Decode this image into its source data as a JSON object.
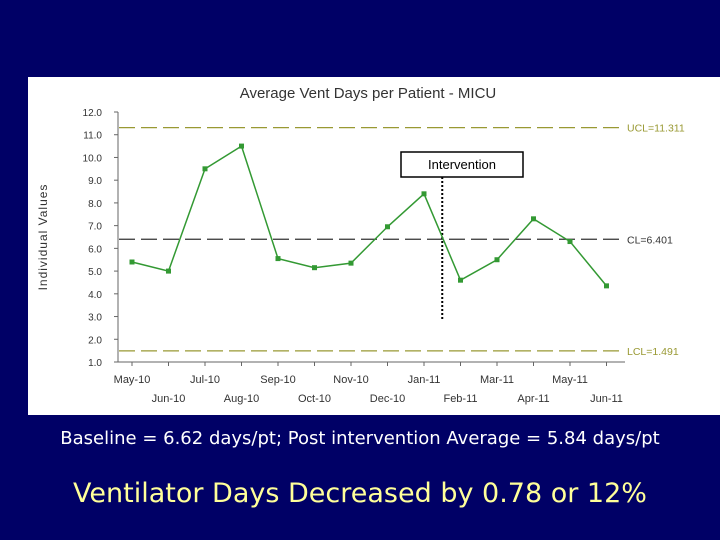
{
  "colors": {
    "background": "#000066",
    "panel": "#ffffff",
    "series": "#339933",
    "control_limit": "#999933",
    "center_line": "#333333",
    "caption_main": "#ffffff",
    "caption_headline": "#ffff99"
  },
  "chart_data": {
    "type": "line",
    "title": "Average Vent Days per Patient - MICU",
    "ylabel": "Individual Values",
    "xlabel": "",
    "ylim": [
      1.0,
      12.0
    ],
    "yticks": [
      "1.0",
      "2.0",
      "3.0",
      "4.0",
      "5.0",
      "6.0",
      "7.0",
      "8.0",
      "9.0",
      "10.0",
      "11.0",
      "12.0"
    ],
    "categories": [
      "May-10",
      "Jun-10",
      "Jul-10",
      "Aug-10",
      "Sep-10",
      "Oct-10",
      "Nov-10",
      "Dec-10",
      "Jan-11",
      "Feb-11",
      "Mar-11",
      "Apr-11",
      "May-11",
      "Jun-11"
    ],
    "series": [
      {
        "values": [
          5.4,
          5.0,
          9.5,
          10.5,
          5.55,
          5.15,
          5.35,
          6.95,
          8.4,
          4.6,
          5.5,
          7.3,
          6.3,
          4.35
        ]
      }
    ],
    "reference_lines": [
      {
        "label": "UCL=11.311",
        "value": 11.311,
        "style": "dashed",
        "color": "#999933"
      },
      {
        "label": "CL=6.401",
        "value": 6.401,
        "style": "dashed",
        "color": "#333333"
      },
      {
        "label": "LCL=1.491",
        "value": 1.491,
        "style": "dashed",
        "color": "#999933"
      }
    ],
    "annotation": {
      "text": "Intervention",
      "between": [
        "Jan-11",
        "Feb-11"
      ]
    },
    "grid": false,
    "legend": "none"
  },
  "captions": {
    "summary": "Baseline = 6.62 days/pt;  Post intervention Average = 5.84 days/pt",
    "headline": "Ventilator Days Decreased by 0.78 or 12%"
  }
}
